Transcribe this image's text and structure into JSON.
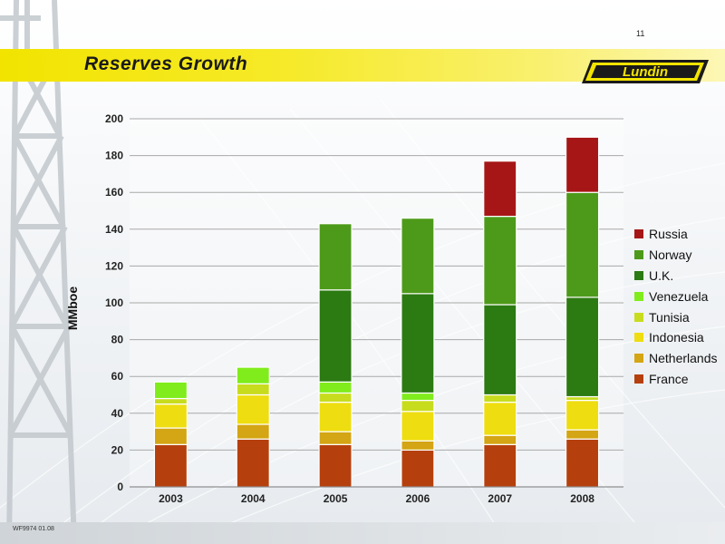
{
  "page_number": "11",
  "title": "Reserves Growth",
  "logo_text": "Lundin",
  "footer_code": "WF9974 01.08",
  "colors": {
    "title_band": "#f2e400",
    "logo_bg": "#f2e400"
  },
  "chart_data": {
    "type": "bar",
    "stacked": true,
    "categories": [
      "2003",
      "2004",
      "2005",
      "2006",
      "2007",
      "2008"
    ],
    "ylabel": "MMboe",
    "xlabel": "",
    "ylim": [
      0,
      200
    ],
    "yticks": [
      "0",
      "20",
      "40",
      "60",
      "80",
      "100",
      "120",
      "140",
      "160",
      "180",
      "200"
    ],
    "grid": true,
    "legend_position": "right",
    "series": [
      {
        "name": "France",
        "color": "#b5400d",
        "values": [
          23,
          26,
          23,
          20,
          23,
          26
        ]
      },
      {
        "name": "Netherlands",
        "color": "#d4a514",
        "values": [
          9,
          8,
          7,
          5,
          5,
          5
        ]
      },
      {
        "name": "Indonesia",
        "color": "#eedd10",
        "values": [
          13,
          16,
          16,
          16,
          18,
          16
        ]
      },
      {
        "name": "Tunisia",
        "color": "#c8dc1e",
        "values": [
          3,
          6,
          5,
          6,
          4,
          2
        ]
      },
      {
        "name": "Venezuela",
        "color": "#80ec1c",
        "values": [
          9,
          9,
          6,
          4,
          0,
          0
        ]
      },
      {
        "name": "U.K.",
        "color": "#2c7a12",
        "values": [
          0,
          0,
          50,
          54,
          49,
          54
        ]
      },
      {
        "name": "Norway",
        "color": "#4d9a1a",
        "values": [
          0,
          0,
          36,
          41,
          48,
          57
        ]
      },
      {
        "name": "Russia",
        "color": "#a61616",
        "values": [
          0,
          0,
          0,
          0,
          30,
          30
        ]
      }
    ]
  }
}
